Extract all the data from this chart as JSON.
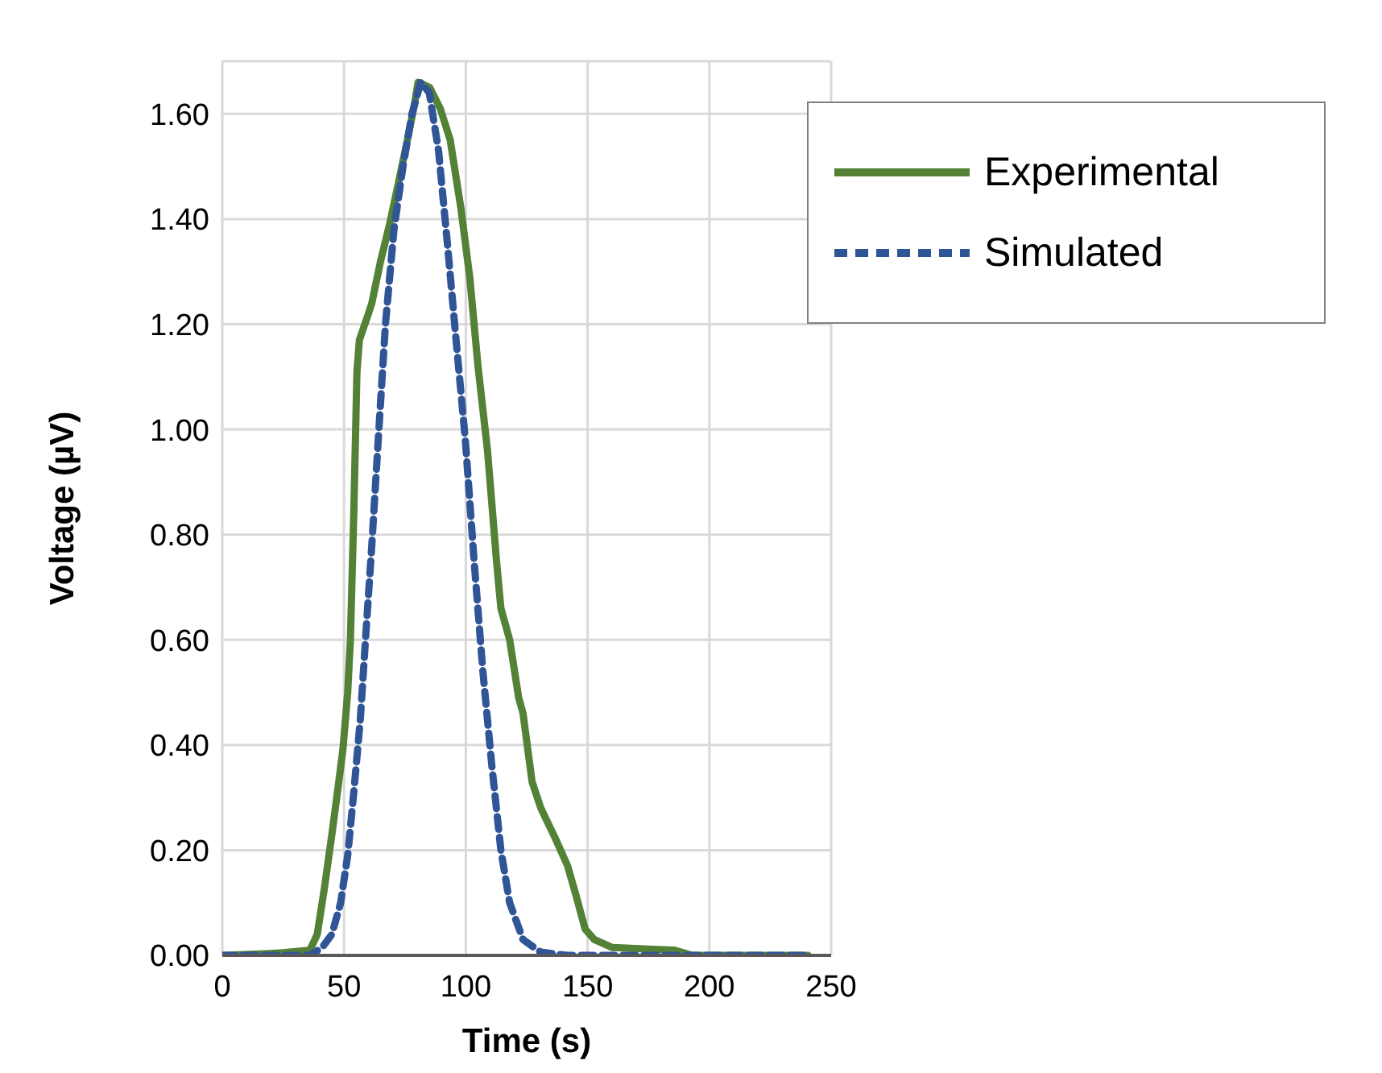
{
  "chart_data": {
    "type": "line",
    "xlabel": "Time (s)",
    "ylabel": "Voltage (µV)",
    "xlim": [
      0,
      250
    ],
    "xticks": [
      0,
      50,
      100,
      150,
      200,
      250
    ],
    "ylim": [
      0,
      1.7
    ],
    "yticks": [
      {
        "value": 0,
        "label": "0.00"
      },
      {
        "value": 0.2,
        "label": "0.20"
      },
      {
        "value": 0.4,
        "label": "0.40"
      },
      {
        "value": 0.6,
        "label": "0.60"
      },
      {
        "value": 0.8,
        "label": "0.80"
      },
      {
        "value": 1,
        "label": "1.00"
      },
      {
        "value": 1.2,
        "label": "1.20"
      },
      {
        "value": 1.4,
        "label": "1.40"
      },
      {
        "value": 1.6,
        "label": "1.60"
      }
    ],
    "grid": true,
    "legend": "top right",
    "marker": "none",
    "series": [
      {
        "name": "Experimental",
        "color": "#538135",
        "line_style": "solid",
        "x": [
          0,
          17.5,
          25,
          36,
          39,
          42,
          45,
          47,
          49.5,
          51.5,
          52.6,
          54,
          55.3,
          56.3,
          60,
          61.4,
          65,
          68.7,
          72.4,
          76,
          79,
          80.4,
          85.2,
          89.5,
          93.6,
          98,
          101.6,
          105,
          108.9,
          112.6,
          114.4,
          118,
          121.7,
          123.5,
          127.2,
          130.8,
          137,
          141.8,
          145.5,
          149,
          152.8,
          160,
          175,
          185.7,
          193,
          240.5
        ],
        "values": [
          0,
          0.003,
          0.005,
          0.01,
          0.04,
          0.13,
          0.23,
          0.3,
          0.39,
          0.5,
          0.6,
          0.84,
          1.11,
          1.17,
          1.22,
          1.24,
          1.32,
          1.39,
          1.47,
          1.55,
          1.62,
          1.66,
          1.65,
          1.61,
          1.55,
          1.42,
          1.29,
          1.12,
          0.96,
          0.75,
          0.66,
          0.6,
          0.49,
          0.46,
          0.33,
          0.28,
          0.22,
          0.17,
          0.11,
          0.05,
          0.03,
          0.015,
          0.012,
          0.01,
          0,
          0
        ]
      },
      {
        "name": "Simulated",
        "color": "#2f5597",
        "line_style": "dashed",
        "x": [
          0,
          36,
          41,
          45,
          48.6,
          51.5,
          54,
          56.7,
          58.8,
          61.4,
          64.3,
          67,
          70.5,
          74.2,
          77.9,
          81.5,
          85,
          88.8,
          92.5,
          96,
          99.8,
          103.4,
          107,
          110.7,
          114.4,
          118,
          123.5,
          130.8,
          141.8,
          240
        ],
        "values": [
          0,
          0,
          0.015,
          0.04,
          0.1,
          0.19,
          0.31,
          0.45,
          0.6,
          0.78,
          1,
          1.2,
          1.38,
          1.5,
          1.6,
          1.66,
          1.64,
          1.53,
          1.35,
          1.17,
          0.98,
          0.75,
          0.54,
          0.36,
          0.2,
          0.1,
          0.03,
          0.006,
          0,
          0
        ]
      }
    ]
  }
}
